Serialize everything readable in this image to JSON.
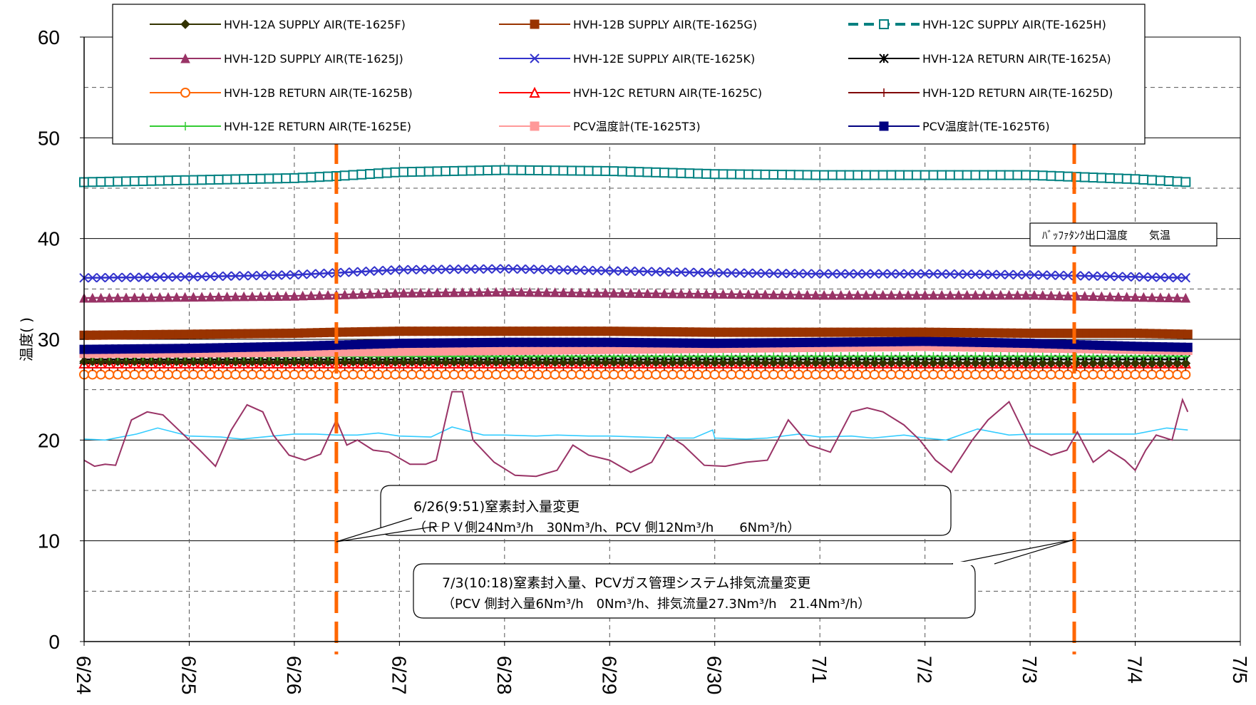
{
  "chart_data": {
    "type": "line",
    "ylabel": "温度(  )",
    "ylim": [
      0,
      60
    ],
    "yticks": [
      "0",
      "10",
      "20",
      "30",
      "40",
      "50",
      "60"
    ],
    "xlim": [
      "6/24",
      "7/5"
    ],
    "xticks": [
      "6/24",
      "6/25",
      "6/26",
      "6/27",
      "6/28",
      "6/29",
      "6/30",
      "7/1",
      "7/2",
      "7/3",
      "7/4",
      "7/5"
    ],
    "grid": true,
    "legend_position": "top",
    "series": [
      {
        "name": "HVH-12A SUPPLY AIR(TE-1625F)",
        "color": "#333300",
        "marker": "diamond",
        "x": [
          0,
          10.5
        ],
        "values": [
          27.8,
          27.6
        ]
      },
      {
        "name": "HVH-12B SUPPLY AIR(TE-1625G)",
        "color": "#993300",
        "marker": "square",
        "x": [
          0,
          1,
          2,
          2.4,
          3,
          4,
          5,
          6,
          7,
          8,
          9,
          10,
          10.5
        ],
        "values": [
          30.4,
          30.5,
          30.6,
          30.7,
          30.8,
          30.8,
          30.8,
          30.7,
          30.7,
          30.7,
          30.6,
          30.6,
          30.5
        ]
      },
      {
        "name": "HVH-12C SUPPLY AIR(TE-1625H)",
        "color": "#008080",
        "marker": "open-square",
        "dashed": true,
        "x": [
          0,
          1,
          2,
          2.4,
          3,
          4,
          5,
          6,
          7,
          8,
          9,
          10,
          10.5
        ],
        "values": [
          45.6,
          45.8,
          46.0,
          46.2,
          46.6,
          46.8,
          46.7,
          46.4,
          46.3,
          46.3,
          46.3,
          45.9,
          45.6
        ]
      },
      {
        "name": "HVH-12D SUPPLY AIR(TE-1625J)",
        "color": "#993366",
        "marker": "triangle",
        "x": [
          0,
          1,
          2,
          3,
          4,
          5,
          6,
          7,
          8,
          9,
          10,
          10.5
        ],
        "values": [
          34.1,
          34.2,
          34.3,
          34.6,
          34.7,
          34.6,
          34.5,
          34.4,
          34.4,
          34.4,
          34.2,
          34.1
        ]
      },
      {
        "name": "HVH-12E SUPPLY AIR(TE-1625K)",
        "color": "#3333cc",
        "marker": "x",
        "x": [
          0,
          1,
          2,
          3,
          4,
          5,
          6,
          7,
          8,
          9,
          10,
          10.5
        ],
        "values": [
          36.1,
          36.2,
          36.4,
          36.9,
          37.0,
          36.8,
          36.6,
          36.5,
          36.5,
          36.4,
          36.2,
          36.1
        ]
      },
      {
        "name": "HVH-12A RETURN AIR(TE-1625A)",
        "color": "#000000",
        "marker": "asterisk",
        "x": [
          0,
          10.5
        ],
        "values": [
          28.0,
          28.0
        ]
      },
      {
        "name": "HVH-12B RETURN AIR(TE-1625B)",
        "color": "#ff6600",
        "marker": "open-circle",
        "x": [
          0,
          10.5
        ],
        "values": [
          26.5,
          26.5
        ]
      },
      {
        "name": "HVH-12C RETURN AIR(TE-1625C)",
        "color": "#ff0000",
        "marker": "open-triangle",
        "x": [
          0,
          10.5
        ],
        "values": [
          27.6,
          27.6
        ]
      },
      {
        "name": "HVH-12D RETURN AIR(TE-1625D)",
        "color": "#800000",
        "marker": "plus",
        "x": [
          0,
          10.5
        ],
        "values": [
          27.3,
          27.3
        ]
      },
      {
        "name": "HVH-12E RETURN AIR(TE-1625E)",
        "color": "#33cc33",
        "marker": "plus",
        "x": [
          0,
          10.5
        ],
        "values": [
          28.3,
          28.3
        ]
      },
      {
        "name": "PCV温度計(TE-1625T3)",
        "color": "#ff9999",
        "marker": "square",
        "x": [
          0,
          2,
          4,
          6,
          8,
          10,
          10.5
        ],
        "values": [
          28.6,
          28.7,
          28.9,
          29.1,
          29.3,
          29.0,
          28.9
        ]
      },
      {
        "name": "PCV温度計(TE-1625T6)",
        "color": "#000080",
        "marker": "square",
        "x": [
          0,
          1,
          2,
          3,
          4,
          5,
          6,
          7,
          8,
          9,
          10,
          10.5
        ],
        "values": [
          29.0,
          29.1,
          29.3,
          29.6,
          29.7,
          29.7,
          29.6,
          29.7,
          29.8,
          29.6,
          29.3,
          29.2
        ]
      },
      {
        "name": "バッファタンク出口温度",
        "color": "#33ccff",
        "marker": "none",
        "x": [
          0,
          0.2,
          0.5,
          0.7,
          1.0,
          1.3,
          1.5,
          1.8,
          2.0,
          2.2,
          2.4,
          2.6,
          2.8,
          3.0,
          3.3,
          3.5,
          3.8,
          4.0,
          4.3,
          4.5,
          4.8,
          5.0,
          5.3,
          5.6,
          5.8,
          5.98,
          6.0,
          6.3,
          6.5,
          6.8,
          7.0,
          7.3,
          7.5,
          7.8,
          8.0,
          8.2,
          8.5,
          8.8,
          9.0,
          9.3,
          9.5,
          9.8,
          10.0,
          10.3,
          10.5
        ],
        "values": [
          20.1,
          20.0,
          20.6,
          21.2,
          20.4,
          20.3,
          20.1,
          20.4,
          20.6,
          20.6,
          20.5,
          20.5,
          20.7,
          20.4,
          20.3,
          21.3,
          20.5,
          20.5,
          20.4,
          20.5,
          20.4,
          20.4,
          20.3,
          20.2,
          20.2,
          21.0,
          20.2,
          20.1,
          20.2,
          20.6,
          20.3,
          20.4,
          20.2,
          20.5,
          20.2,
          20.0,
          21.1,
          20.5,
          20.6,
          20.6,
          20.6,
          20.6,
          20.6,
          21.2,
          21.0
        ]
      },
      {
        "name": "気温",
        "color": "#993366",
        "marker": "none",
        "x": [
          0,
          0.1,
          0.2,
          0.3,
          0.45,
          0.6,
          0.75,
          0.9,
          1.1,
          1.25,
          1.4,
          1.55,
          1.7,
          1.8,
          1.95,
          2.1,
          2.25,
          2.4,
          2.5,
          2.6,
          2.75,
          2.9,
          3.1,
          3.25,
          3.35,
          3.5,
          3.6,
          3.7,
          3.9,
          4.1,
          4.3,
          4.5,
          4.65,
          4.8,
          5.0,
          5.2,
          5.4,
          5.55,
          5.7,
          5.9,
          6.1,
          6.3,
          6.5,
          6.7,
          6.9,
          7.1,
          7.3,
          7.45,
          7.6,
          7.8,
          7.95,
          8.1,
          8.25,
          8.45,
          8.6,
          8.8,
          9.0,
          9.2,
          9.35,
          9.45,
          9.6,
          9.75,
          9.9,
          10.0,
          10.1,
          10.2,
          10.35,
          10.45,
          10.5
        ],
        "values": [
          18.0,
          17.4,
          17.6,
          17.5,
          22.0,
          22.8,
          22.5,
          21.0,
          19.0,
          17.4,
          21.0,
          23.5,
          22.8,
          20.5,
          18.5,
          18.0,
          18.6,
          22.0,
          19.5,
          20.0,
          19.0,
          18.8,
          17.6,
          17.6,
          18.0,
          24.8,
          24.8,
          20.0,
          17.8,
          16.5,
          16.4,
          17.0,
          19.5,
          18.5,
          18.0,
          16.8,
          17.8,
          20.5,
          19.5,
          17.5,
          17.4,
          17.8,
          18.0,
          22.0,
          19.5,
          18.8,
          22.8,
          23.2,
          22.8,
          21.5,
          20.0,
          18.0,
          16.8,
          20.0,
          22.0,
          23.8,
          19.5,
          18.5,
          19.0,
          20.8,
          17.8,
          19.0,
          18.0,
          17.0,
          19.0,
          20.5,
          20.0,
          24.0,
          22.8
        ]
      }
    ],
    "events": [
      {
        "x": 2.4,
        "label": "6/26(9:51)窒素封入量変更",
        "detail": "（ＲＰＶ側24Nm³/h　30Nm³/h、PCV 側12Nm³/h　　6Nm³/h）"
      },
      {
        "x": 9.42,
        "label": "7/3(10:18)窒素封入量、PCVガス管理システム排気流量変更",
        "detail": "（PCV 側封入量6Nm³/h　0Nm³/h、排気流量27.3Nm³/h　21.4Nm³/h）"
      }
    ],
    "annotation_box": "ﾊﾞｯﾌｧﾀﾝｸ出口温度　　気温"
  }
}
